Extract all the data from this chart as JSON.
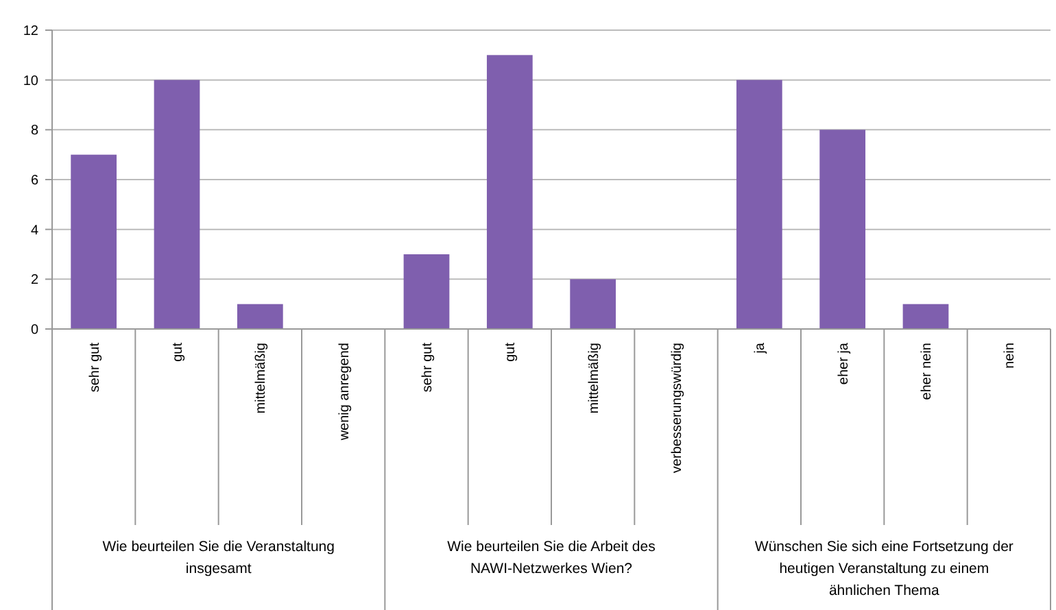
{
  "chart_data": {
    "type": "bar",
    "categories": [
      "sehr gut",
      "gut",
      "mittelmäßig",
      "wenig anregend",
      "sehr gut",
      "gut",
      "mittelmäßig",
      "verbesserungswürdig",
      "ja",
      "eher ja",
      "eher nein",
      "nein"
    ],
    "values": [
      7,
      10,
      1,
      0,
      3,
      11,
      2,
      0,
      10,
      8,
      1,
      0
    ],
    "color": "#7f5fae",
    "ylim": [
      0,
      12
    ],
    "yticks": [
      0,
      2,
      4,
      6,
      8,
      10,
      12
    ],
    "grid": "y",
    "annotations": [
      "Wie beurteilen Sie die Veranstaltung insgesamt",
      "Wie beurteilen Sie die Arbeit des NAWI-Netzwerkes Wien?",
      "Wünschen Sie sich eine Fortsetzung der heutigen Veranstaltung zu einem ähnlichen Thema"
    ]
  }
}
